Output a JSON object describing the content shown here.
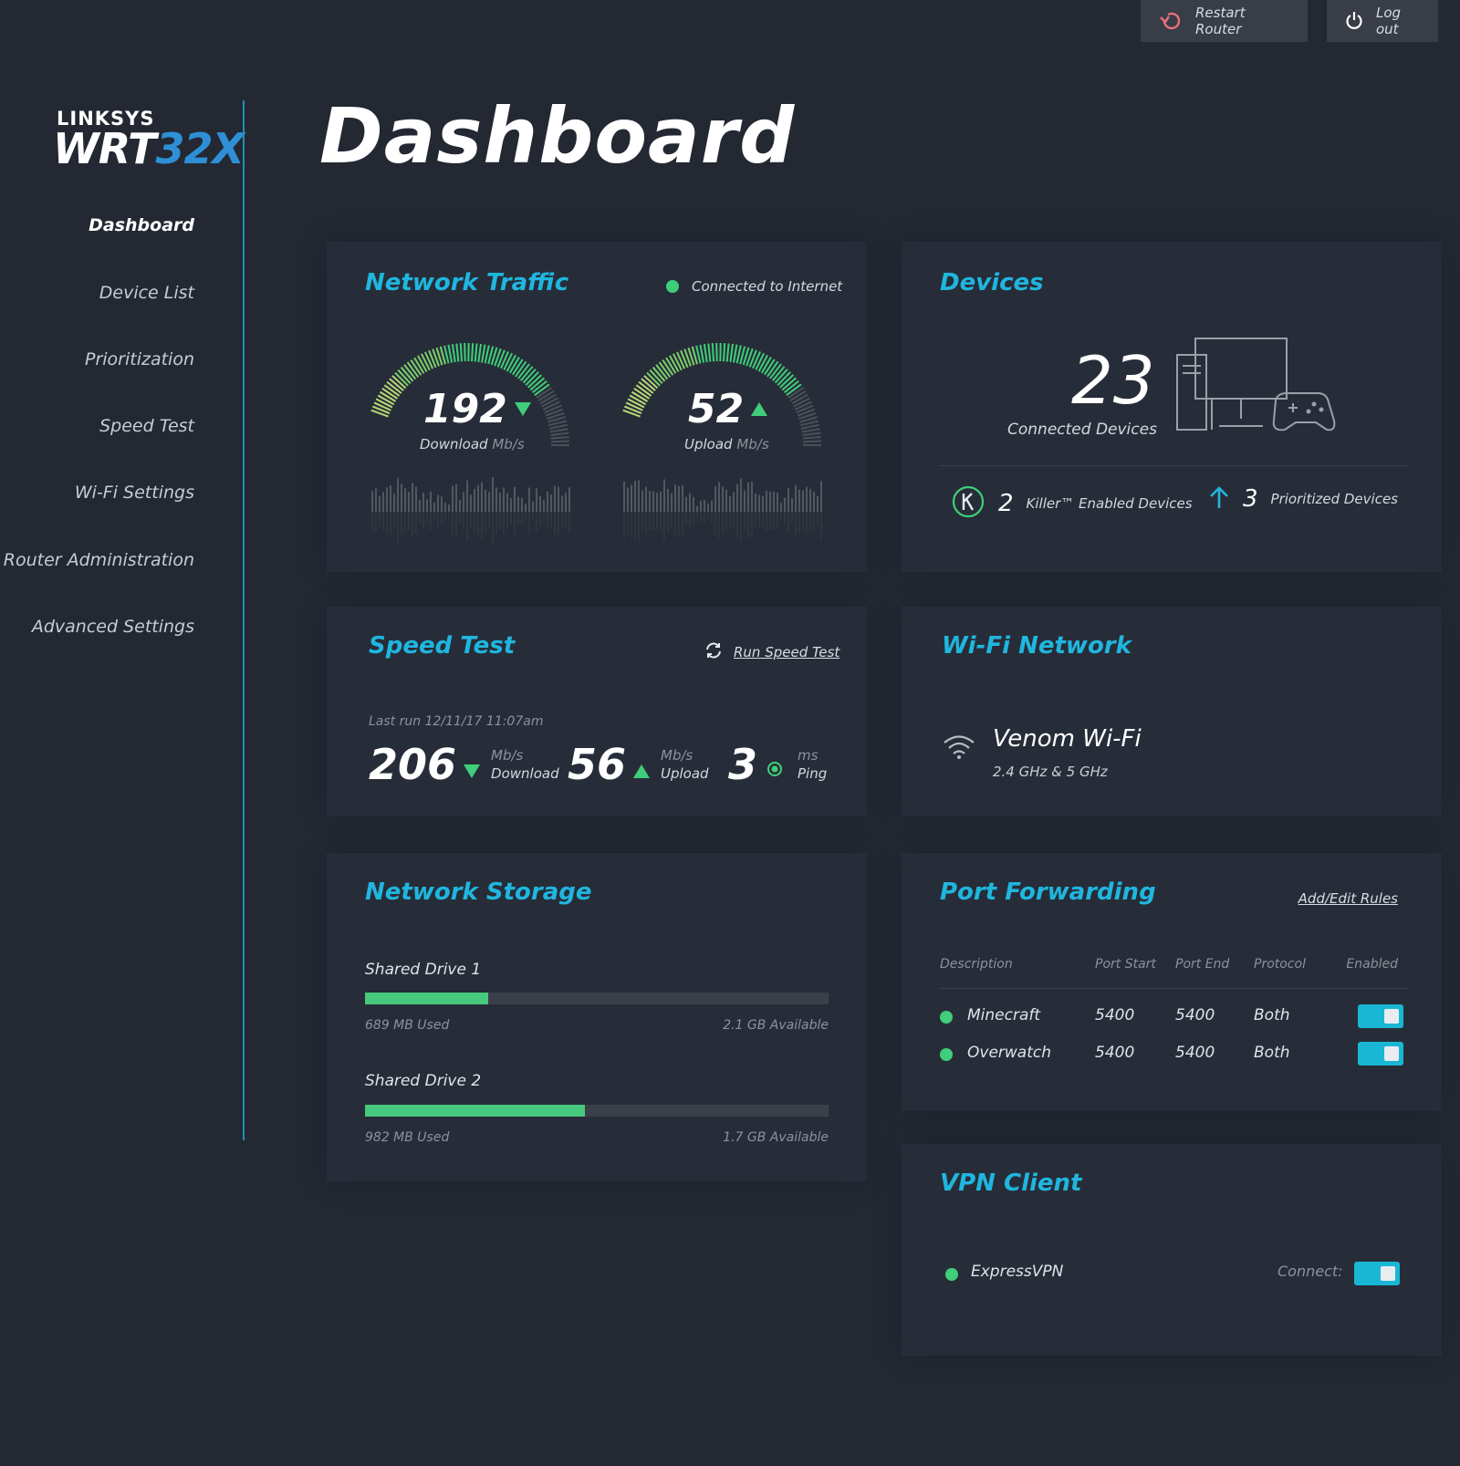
{
  "topbar": {
    "restart_label": "Restart Router",
    "logout_label": "Log out"
  },
  "logo": {
    "brand": "LINKSYS",
    "model_main": "WRT",
    "model_accent": "32X"
  },
  "sidebar": {
    "items": [
      {
        "label": "Dashboard",
        "active": true
      },
      {
        "label": "Device List"
      },
      {
        "label": "Prioritization"
      },
      {
        "label": "Speed Test"
      },
      {
        "label": "Wi-Fi Settings"
      },
      {
        "label": "Router Administration"
      },
      {
        "label": "Advanced Settings"
      }
    ]
  },
  "page_title": "Dashboard",
  "network_traffic": {
    "title": "Network Traffic",
    "status": "Connected to Internet",
    "download": {
      "value": "192",
      "label": "Download",
      "unit": "Mb/s"
    },
    "upload": {
      "value": "52",
      "label": "Upload",
      "unit": "Mb/s"
    }
  },
  "devices": {
    "title": "Devices",
    "connected_count": "23",
    "connected_label": "Connected Devices",
    "killer_count": "2",
    "killer_label": "Killer™ Enabled Devices",
    "prioritized_count": "3",
    "prioritized_label": "Prioritized Devices"
  },
  "speed_test": {
    "title": "Speed Test",
    "run_label": "Run Speed Test",
    "last_run": "Last run 12/11/17 11:07am",
    "download": {
      "value": "206",
      "unit": "Mb/s",
      "label": "Download"
    },
    "upload": {
      "value": "56",
      "unit": "Mb/s",
      "label": "Upload"
    },
    "ping": {
      "value": "3",
      "unit": "ms",
      "label": "Ping"
    }
  },
  "wifi": {
    "title": "Wi-Fi Network",
    "name": "Venom Wi-Fi",
    "bands": "2.4 GHz & 5 GHz"
  },
  "storage": {
    "title": "Network Storage",
    "drives": [
      {
        "name": "Shared Drive 1",
        "used": "689 MB Used",
        "available": "2.1 GB Available",
        "fill": 0.265
      },
      {
        "name": "Shared Drive 2",
        "used": "982 MB Used",
        "available": "1.7 GB Available",
        "fill": 0.475
      }
    ]
  },
  "port_forwarding": {
    "title": "Port Forwarding",
    "edit_label": "Add/Edit Rules",
    "headers": [
      "Description",
      "Port Start",
      "Port End",
      "Protocol",
      "Enabled"
    ],
    "rows": [
      {
        "description": "Minecraft",
        "start": "5400",
        "end": "5400",
        "protocol": "Both",
        "enabled": true
      },
      {
        "description": "Overwatch",
        "start": "5400",
        "end": "5400",
        "protocol": "Both",
        "enabled": true
      }
    ]
  },
  "vpn": {
    "title": "VPN Client",
    "provider": "ExpressVPN",
    "connect_label": "Connect:",
    "connected": true
  },
  "colors": {
    "accent": "#1fb6df",
    "green": "#3fce7a",
    "background": "#232833",
    "card": "#272d38"
  }
}
